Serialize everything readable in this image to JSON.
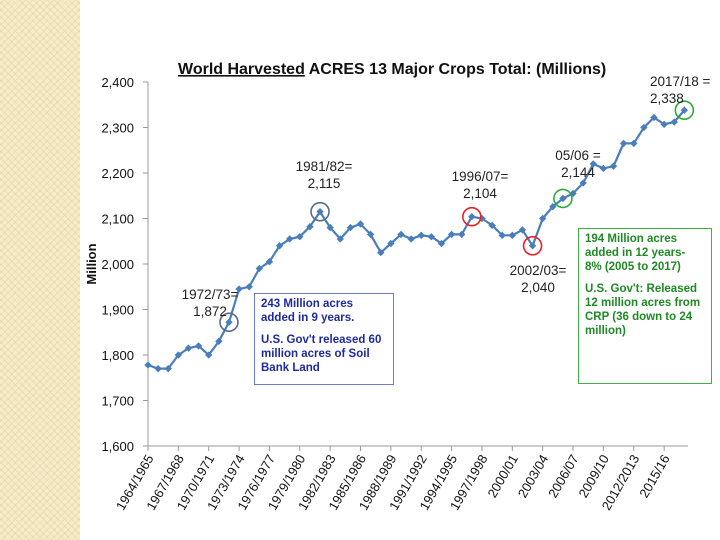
{
  "chart_data": {
    "type": "line",
    "title_underlined": "World Harvested",
    "title_rest": " ACRES 13 Major Crops Total: (Millions)",
    "ylabel": "Million",
    "xlabel": "",
    "ylim": [
      1600,
      2400
    ],
    "yticks": [
      1600,
      1700,
      1800,
      1900,
      2000,
      2100,
      2200,
      2300,
      2400
    ],
    "ytick_labels": [
      "1,600",
      "1,700",
      "1,800",
      "1,900",
      "2,000",
      "2,100",
      "2,200",
      "2,300",
      "2,400"
    ],
    "xtick_labels": [
      "1964/1965",
      "1967/1968",
      "1970/1971",
      "1973/1974",
      "1976/1977",
      "1979/1980",
      "1982/1983",
      "1985/1986",
      "1988/1989",
      "1991/1992",
      "1994/1995",
      "1997/1998",
      "2000/01",
      "2003/04",
      "2006/07",
      "2009/10",
      "2012/2013",
      "2015/16"
    ],
    "grid": false,
    "series": [
      {
        "name": "World Harvested Acres",
        "color": "#4a7ebb",
        "start_year": 1964,
        "values": [
          1778,
          1770,
          1770,
          1800,
          1815,
          1820,
          1800,
          1830,
          1872,
          1945,
          1950,
          1990,
          2005,
          2040,
          2055,
          2060,
          2082,
          2115,
          2080,
          2055,
          2080,
          2088,
          2065,
          2025,
          2045,
          2065,
          2055,
          2063,
          2060,
          2045,
          2065,
          2065,
          2104,
          2100,
          2085,
          2063,
          2063,
          2075,
          2040,
          2100,
          2126,
          2144,
          2155,
          2178,
          2220,
          2210,
          2215,
          2265,
          2265,
          2300,
          2322,
          2307,
          2312,
          2338
        ]
      }
    ],
    "markers": [
      {
        "label_line1": "1972/73=",
        "label_line2": "1,872",
        "index": 8,
        "color": "#556b8d"
      },
      {
        "label_line1": "1981/82=",
        "label_line2": "2,115",
        "index": 17,
        "color": "#556b8d"
      },
      {
        "label_line1": "1996/07=",
        "label_line2": "2,104",
        "index": 32,
        "color": "#e8202a"
      },
      {
        "label_line1": "2002/03=",
        "label_line2": "2,040",
        "index": 38,
        "color": "#e8202a"
      },
      {
        "label_line1": "05/06 =",
        "label_line2": "2,144",
        "index": 41,
        "color": "#2eaa3a"
      },
      {
        "label_line1": "2017/18 =",
        "label_line2": "2,338",
        "index": 53,
        "color": "#2eaa3a"
      }
    ]
  },
  "callouts": {
    "blue_line1": "243 Million acres added in 9 years.",
    "blue_line2": "U.S. Gov't released 60 million acres of Soil Bank Land",
    "green_line1": "194 Million acres added in 12 years- 8% (2005 to 2017)",
    "green_line2": "U.S. Gov't: Released 12 million acres from CRP (36 down to 24 million)"
  }
}
